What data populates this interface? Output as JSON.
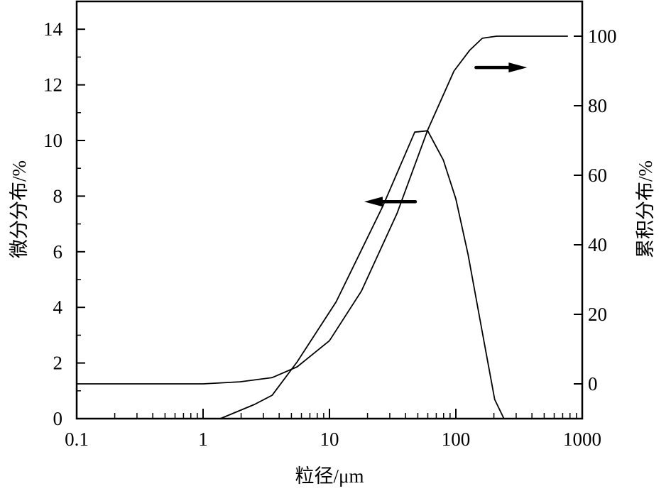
{
  "chart_data": {
    "type": "line",
    "title": "",
    "xlabel": "粒径/μm",
    "ylabel": "微分分布/%",
    "y2label": "累积分布/%",
    "xscale": "log",
    "xlim": [
      0.1,
      1000
    ],
    "ylim": [
      0,
      15
    ],
    "y2lim": [
      -10,
      110
    ],
    "xticks": [
      0.1,
      1,
      10,
      100,
      1000
    ],
    "xtick_labels": [
      "0.1",
      "1",
      "10",
      "100",
      "1000"
    ],
    "yticks": [
      0,
      2,
      4,
      6,
      8,
      10,
      12,
      14
    ],
    "ytick_labels": [
      "0",
      "2",
      "4",
      "6",
      "8",
      "10",
      "12",
      "14"
    ],
    "y2ticks": [
      0,
      20,
      40,
      60,
      80,
      100
    ],
    "y2tick_labels": [
      "0",
      "20",
      "40",
      "60",
      "80",
      "100"
    ],
    "grid": false,
    "series": [
      {
        "name": "微分分布",
        "axis": "left",
        "x": [
          1.37,
          2.55,
          3.52,
          5.55,
          11.3,
          26.4,
          47.3,
          59.8,
          79.5,
          100,
          125,
          162,
          203,
          240
        ],
        "y": [
          0,
          0.51,
          0.84,
          2.04,
          4.2,
          7.63,
          10.3,
          10.35,
          9.3,
          7.9,
          5.9,
          3.1,
          0.69,
          0
        ]
      },
      {
        "name": "累积分布",
        "axis": "right",
        "x": [
          0.1,
          1.0,
          1.96,
          3.52,
          5.55,
          10,
          17.9,
          34.2,
          59.8,
          96.7,
          129,
          162,
          210,
          770
        ],
        "y": [
          0,
          0,
          0.6,
          1.8,
          4.9,
          12.4,
          26.7,
          49,
          73,
          90,
          96,
          99.4,
          100,
          100
        ]
      }
    ],
    "annotations": [
      {
        "type": "arrow",
        "direction": "left",
        "refers_to": "微分分布",
        "at_x": 30,
        "at_y": 7.8
      },
      {
        "type": "arrow",
        "direction": "right",
        "refers_to": "累积分布",
        "at_x": 230,
        "at_y": 91
      }
    ]
  }
}
